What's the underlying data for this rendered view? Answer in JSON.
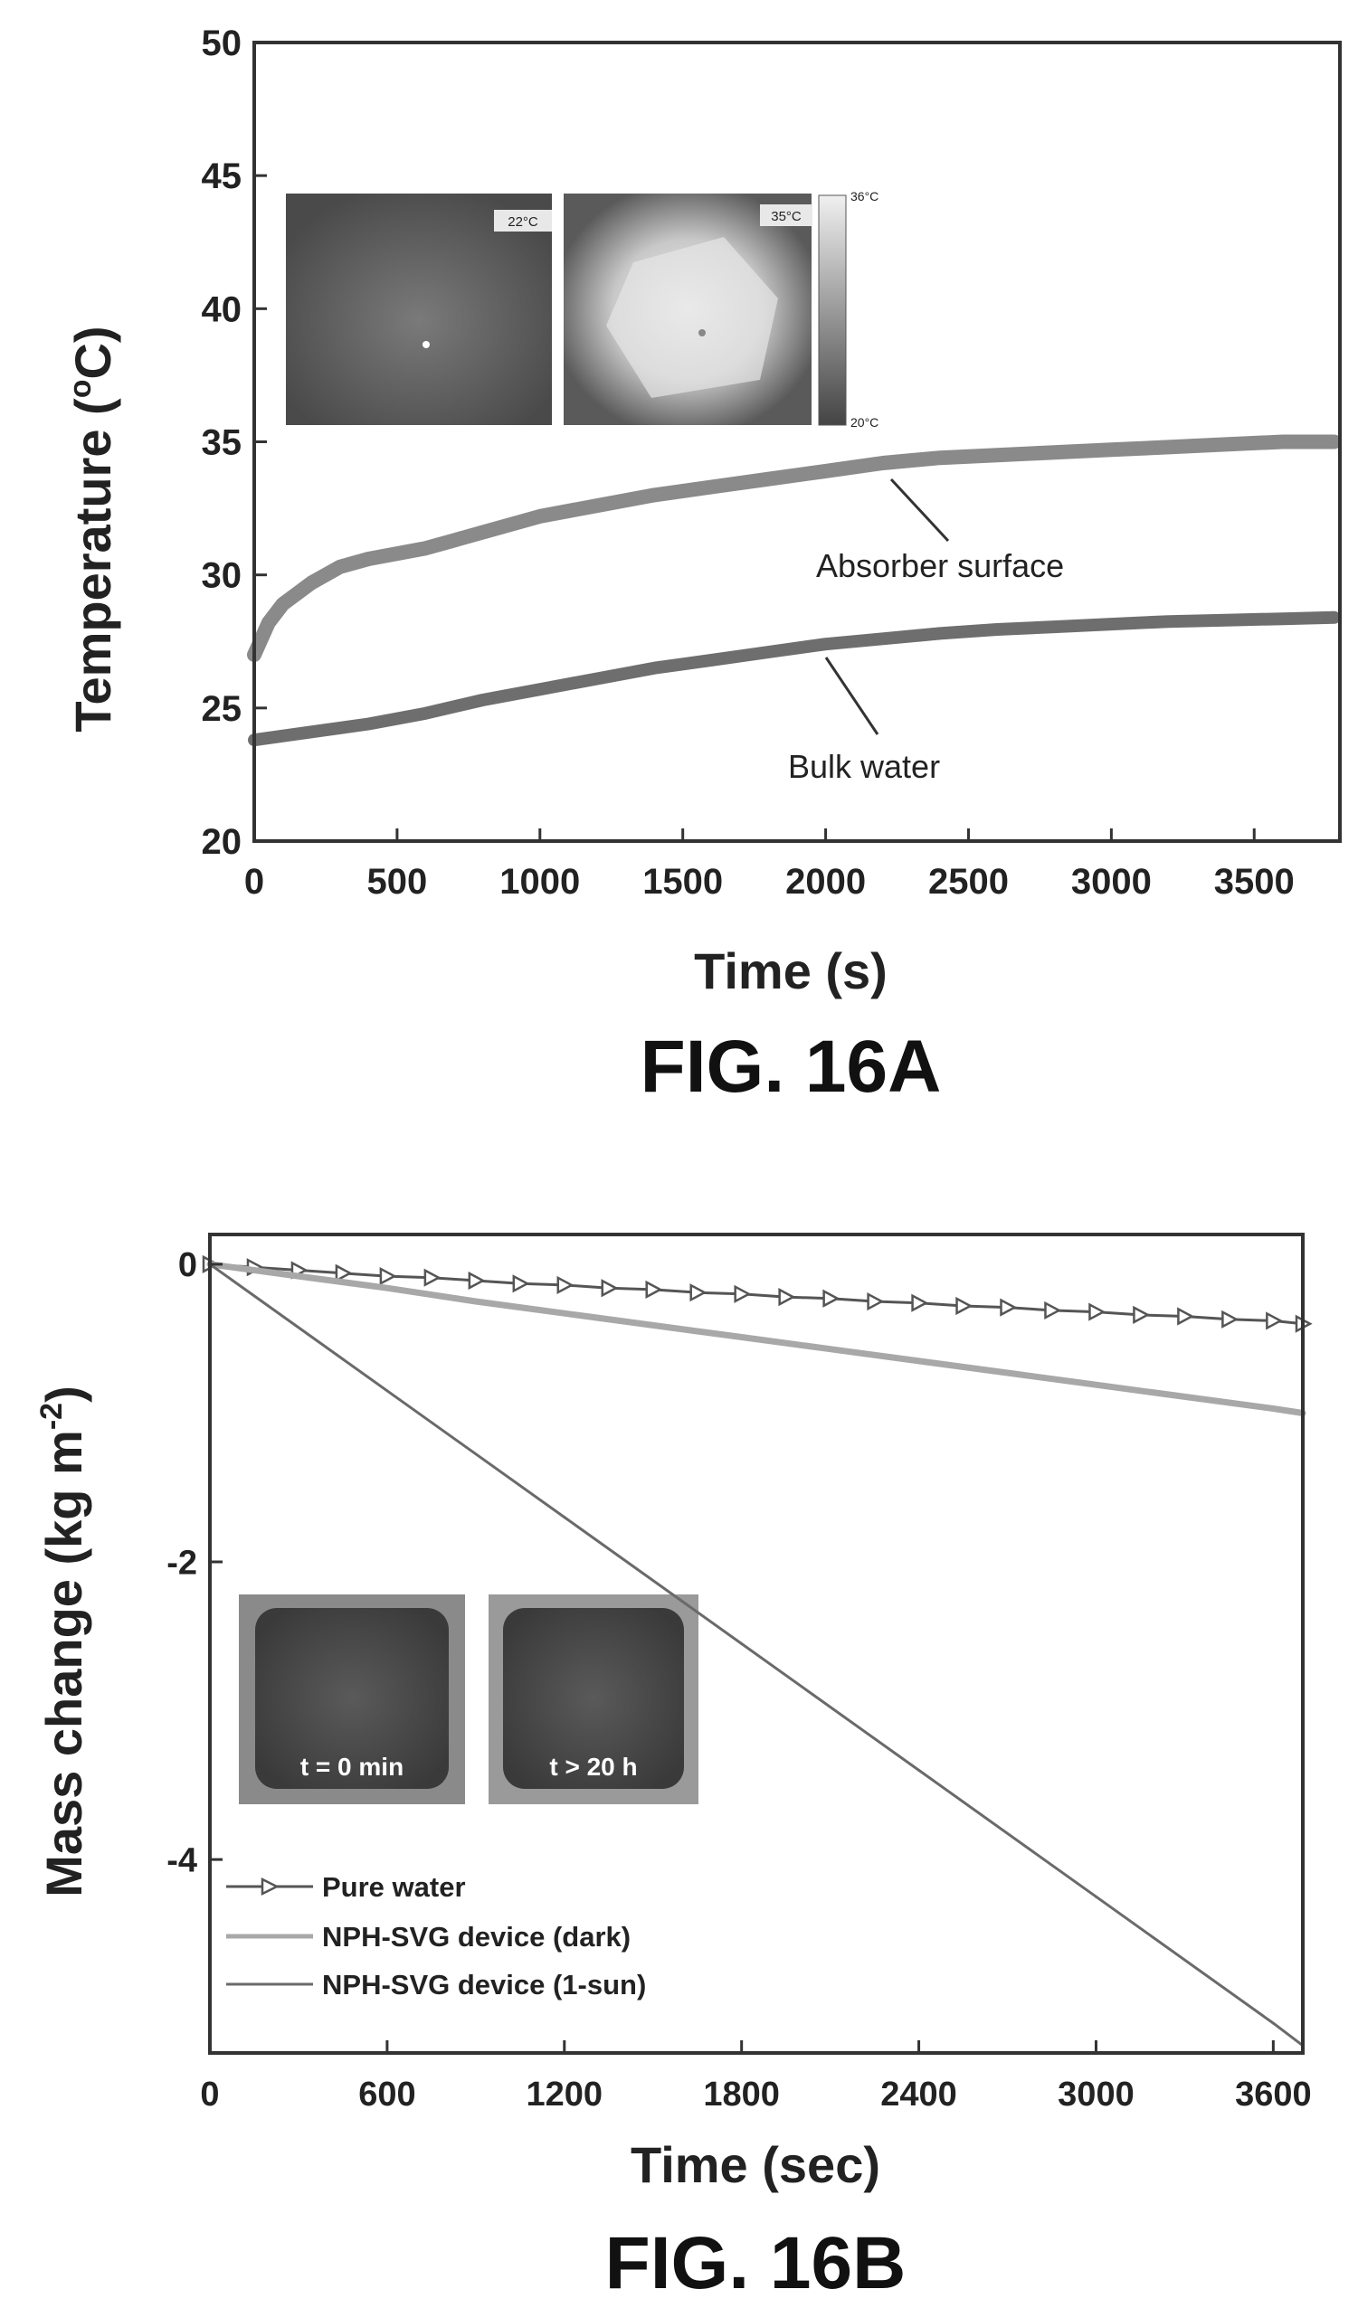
{
  "chart_data": [
    {
      "type": "line",
      "figure_label": "FIG. 16A",
      "xlabel": "Time (s)",
      "ylabel_main": "Temperature (",
      "ylabel_sup": "o",
      "ylabel_end": "C)",
      "xlim": [
        0,
        3800
      ],
      "ylim": [
        20,
        50
      ],
      "xticks": [
        0,
        500,
        1000,
        1500,
        2000,
        2500,
        3000,
        3500
      ],
      "yticks": [
        20,
        25,
        30,
        35,
        40,
        45,
        50
      ],
      "grid": false,
      "series": [
        {
          "name": "Absorber surface",
          "color": "#8a8a8a",
          "x": [
            0,
            50,
            100,
            200,
            300,
            400,
            500,
            600,
            700,
            800,
            1000,
            1200,
            1400,
            1600,
            1800,
            2000,
            2200,
            2400,
            2600,
            2800,
            3000,
            3200,
            3400,
            3600,
            3780
          ],
          "y": [
            27.0,
            28.2,
            28.9,
            29.7,
            30.3,
            30.6,
            30.8,
            31.0,
            31.3,
            31.6,
            32.2,
            32.6,
            33.0,
            33.3,
            33.6,
            33.9,
            34.2,
            34.4,
            34.5,
            34.6,
            34.7,
            34.8,
            34.9,
            35.0,
            35.0
          ]
        },
        {
          "name": "Bulk water",
          "color": "#6e6e6e",
          "x": [
            0,
            200,
            400,
            600,
            800,
            1000,
            1200,
            1400,
            1600,
            1800,
            2000,
            2200,
            2400,
            2600,
            2800,
            3000,
            3200,
            3400,
            3600,
            3780
          ],
          "y": [
            23.8,
            24.1,
            24.4,
            24.8,
            25.3,
            25.7,
            26.1,
            26.5,
            26.8,
            27.1,
            27.4,
            27.6,
            27.8,
            27.95,
            28.05,
            28.15,
            28.25,
            28.3,
            28.35,
            28.4
          ]
        }
      ],
      "annotations": [
        {
          "text": "Absorber surface",
          "x": 2240,
          "y": 33.8
        },
        {
          "text": "Bulk water",
          "x": 2000,
          "y": 27.3
        }
      ],
      "insets": {
        "left_label": "22°C",
        "right_label": "35°C",
        "scale_top": "36°C",
        "scale_bottom": "20°C"
      }
    },
    {
      "type": "line",
      "figure_label": "FIG. 16B",
      "xlabel": "Time (sec)",
      "ylabel_main": "Mass change (kg m",
      "ylabel_sup": "-2",
      "ylabel_end": ")",
      "xlim": [
        0,
        3700
      ],
      "ylim": [
        -5.3,
        0.2
      ],
      "xticks": [
        0,
        600,
        1200,
        1800,
        2400,
        3000,
        3600
      ],
      "yticks": [
        0,
        -2,
        -4
      ],
      "grid": false,
      "legend_placement": "bottom-left",
      "series": [
        {
          "name": "Pure water",
          "color": "#555555",
          "marker": "triangle-right",
          "x": [
            0,
            150,
            300,
            450,
            600,
            750,
            900,
            1050,
            1200,
            1350,
            1500,
            1650,
            1800,
            1950,
            2100,
            2250,
            2400,
            2550,
            2700,
            2850,
            3000,
            3150,
            3300,
            3450,
            3600,
            3700
          ],
          "y": [
            0,
            -0.02,
            -0.04,
            -0.06,
            -0.08,
            -0.09,
            -0.11,
            -0.13,
            -0.14,
            -0.16,
            -0.17,
            -0.19,
            -0.2,
            -0.22,
            -0.23,
            -0.25,
            -0.26,
            -0.28,
            -0.29,
            -0.31,
            -0.32,
            -0.34,
            -0.35,
            -0.37,
            -0.38,
            -0.4
          ]
        },
        {
          "name": "NPH-SVG device (dark)",
          "color": "#a8a8a8",
          "x": [
            0,
            300,
            600,
            900,
            1200,
            1500,
            1800,
            2100,
            2400,
            2700,
            3000,
            3300,
            3600,
            3700
          ],
          "y": [
            0,
            -0.08,
            -0.16,
            -0.25,
            -0.33,
            -0.41,
            -0.49,
            -0.57,
            -0.65,
            -0.73,
            -0.81,
            -0.89,
            -0.97,
            -1.0
          ]
        },
        {
          "name": "NPH-SVG device (1-sun)",
          "color": "#6a6a6a",
          "x": [
            0,
            600,
            1200,
            1800,
            2400,
            3000,
            3600,
            3700
          ],
          "y": [
            0,
            -0.85,
            -1.7,
            -2.55,
            -3.4,
            -4.25,
            -5.1,
            -5.25
          ]
        }
      ],
      "insets": {
        "left_label": "t = 0 min",
        "right_label": "t > 20 h"
      }
    }
  ]
}
